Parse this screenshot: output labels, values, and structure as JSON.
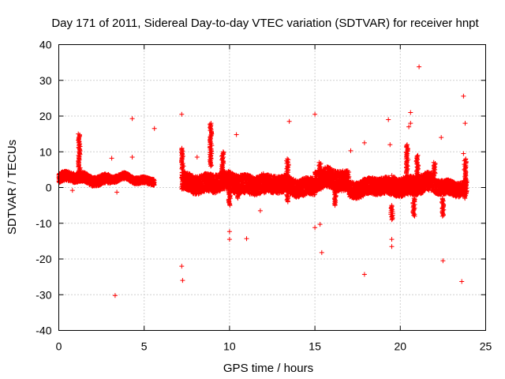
{
  "chart_data": {
    "type": "scatter",
    "title": "Day 171 of 2011, Sidereal Day-to-day VTEC variation (SDTVAR) for receiver hnpt",
    "xlabel": "GPS time / hours",
    "ylabel": "SDTVAR / TECUs",
    "xlim": [
      0,
      25
    ],
    "ylim": [
      -40,
      40
    ],
    "x_ticks": [
      "0",
      "5",
      "10",
      "15",
      "20",
      "25"
    ],
    "y_ticks": [
      "-40",
      "-30",
      "-20",
      "-10",
      "0",
      "10",
      "20",
      "30",
      "40"
    ],
    "grid": true,
    "marker": "+",
    "color": "#ff0000",
    "band_segments": [
      {
        "x": [
          0.0,
          3.0
        ],
        "center": 2.5,
        "halfwidth": 1.3
      },
      {
        "x": [
          3.0,
          5.6
        ],
        "center": 2.3,
        "halfwidth": 0.9
      },
      {
        "x": [
          7.2,
          9.0
        ],
        "center": 1.5,
        "halfwidth": 2.5
      },
      {
        "x": [
          9.0,
          12.0
        ],
        "center": 1.2,
        "halfwidth": 2.6
      },
      {
        "x": [
          12.0,
          15.0
        ],
        "center": 0.5,
        "halfwidth": 2.4
      },
      {
        "x": [
          15.0,
          17.0
        ],
        "center": 2.0,
        "halfwidth": 2.8
      },
      {
        "x": [
          17.0,
          19.5
        ],
        "center": 0.0,
        "halfwidth": 2.3
      },
      {
        "x": [
          19.5,
          22.0
        ],
        "center": 0.8,
        "halfwidth": 2.6
      },
      {
        "x": [
          22.0,
          23.9
        ],
        "center": 0.2,
        "halfwidth": 2.0
      }
    ],
    "spikes": [
      {
        "x": 1.2,
        "y": [
          4,
          15
        ]
      },
      {
        "x": 7.25,
        "y": [
          5,
          11
        ]
      },
      {
        "x": 8.9,
        "y": [
          6,
          18
        ]
      },
      {
        "x": 9.6,
        "y": [
          4,
          10
        ]
      },
      {
        "x": 10.0,
        "y": [
          -5,
          1
        ]
      },
      {
        "x": 10.5,
        "y": [
          -3,
          1
        ]
      },
      {
        "x": 13.4,
        "y": [
          -4,
          8
        ]
      },
      {
        "x": 15.3,
        "y": [
          3,
          7
        ]
      },
      {
        "x": 16.2,
        "y": [
          -5,
          0
        ]
      },
      {
        "x": 19.5,
        "y": [
          -9,
          -5
        ]
      },
      {
        "x": 20.4,
        "y": [
          4,
          12
        ]
      },
      {
        "x": 20.8,
        "y": [
          -8,
          -3
        ]
      },
      {
        "x": 21.0,
        "y": [
          3,
          9
        ]
      },
      {
        "x": 22.0,
        "y": [
          4,
          7
        ]
      },
      {
        "x": 22.5,
        "y": [
          -8,
          -3
        ]
      },
      {
        "x": 23.8,
        "y": [
          -3,
          8
        ]
      }
    ],
    "outliers": [
      {
        "x": 4.3,
        "y": 19.3
      },
      {
        "x": 5.6,
        "y": 16.5
      },
      {
        "x": 3.3,
        "y": -30.2
      },
      {
        "x": 7.2,
        "y": 20.5
      },
      {
        "x": 7.2,
        "y": -22
      },
      {
        "x": 7.25,
        "y": -26
      },
      {
        "x": 8.1,
        "y": 8.5
      },
      {
        "x": 10.0,
        "y": -12.3
      },
      {
        "x": 10.0,
        "y": -14.5
      },
      {
        "x": 10.4,
        "y": 14.8
      },
      {
        "x": 11.0,
        "y": -14.3
      },
      {
        "x": 11.8,
        "y": -6.5
      },
      {
        "x": 13.5,
        "y": 18.5
      },
      {
        "x": 15.0,
        "y": 20.5
      },
      {
        "x": 15.0,
        "y": -11.2
      },
      {
        "x": 15.3,
        "y": -10.3
      },
      {
        "x": 15.4,
        "y": -18.2
      },
      {
        "x": 17.1,
        "y": 10.3
      },
      {
        "x": 17.9,
        "y": 12.5
      },
      {
        "x": 17.9,
        "y": -24.3
      },
      {
        "x": 19.3,
        "y": 19.0
      },
      {
        "x": 19.4,
        "y": 12.0
      },
      {
        "x": 19.5,
        "y": -14.5
      },
      {
        "x": 19.5,
        "y": -16.5
      },
      {
        "x": 20.5,
        "y": 17.0
      },
      {
        "x": 20.6,
        "y": 21.0
      },
      {
        "x": 20.6,
        "y": 18.0
      },
      {
        "x": 21.1,
        "y": 33.8
      },
      {
        "x": 22.4,
        "y": 14.0
      },
      {
        "x": 22.5,
        "y": -20.5
      },
      {
        "x": 23.6,
        "y": -26.3
      },
      {
        "x": 23.7,
        "y": 25.6
      },
      {
        "x": 23.8,
        "y": 18.0
      },
      {
        "x": 23.7,
        "y": 9.5
      },
      {
        "x": 3.1,
        "y": 8.2
      },
      {
        "x": 4.3,
        "y": 8.5
      },
      {
        "x": 0.8,
        "y": -0.8
      },
      {
        "x": 3.4,
        "y": -1.3
      }
    ]
  }
}
